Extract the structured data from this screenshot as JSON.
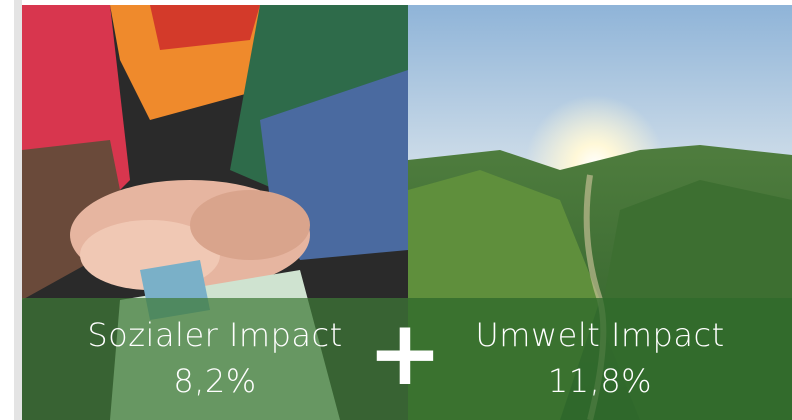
{
  "panels": [
    {
      "title": "Sozialer Impact",
      "value": "8,2%"
    },
    {
      "title": "Umwelt Impact",
      "value": "11,8%"
    }
  ],
  "separator": "+"
}
